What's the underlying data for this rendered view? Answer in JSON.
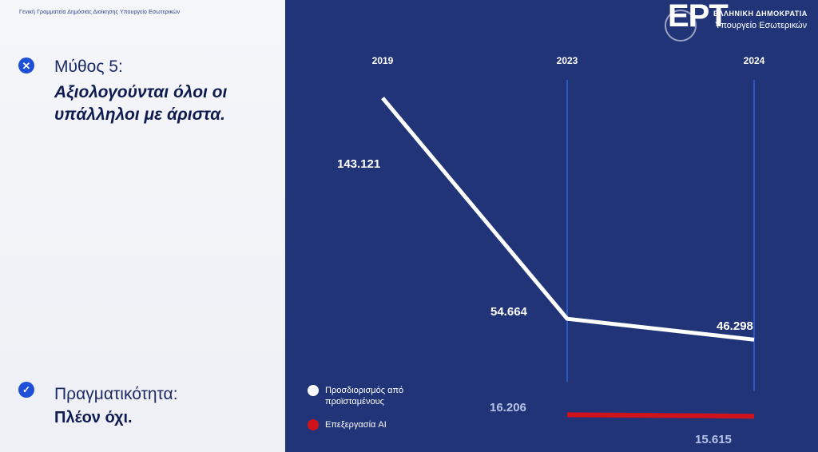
{
  "header": {
    "org_text": "Γενική Γραμματεία Δημόσιας Διοίκησης Υπουργείο Εσωτερικών"
  },
  "myth": {
    "label": "Μύθος 5:",
    "text": "Αξιολογούνται όλοι οι υπάλληλοι με άριστα.",
    "icon_name": "close-icon",
    "icon_glyph": "✕"
  },
  "reality": {
    "label": "Πραγματικότητα:",
    "text": "Πλέον όχι.",
    "icon_name": "check-icon",
    "icon_glyph": "✓"
  },
  "broadcaster": {
    "logo": "ΕΡΤ",
    "ministry_line1": "ΕΛΛΗΝΙΚΗ ΔΗΜΟΚΡΑΤΙΑ",
    "ministry_line2": "Υπουργείο Εσωτερικών"
  },
  "colors": {
    "chart_bg": "#223478",
    "series_supervisors": "#ffffff",
    "series_ai": "#d0121b",
    "guide_lines": "#2f63d6",
    "icon_blue": "#1e4fd8"
  },
  "chart_data": {
    "type": "line",
    "categories": [
      "2019",
      "2023",
      "2024"
    ],
    "series": [
      {
        "name": "Προσδιορισμός από προϊσταμένους",
        "values": [
          143121,
          54664,
          46298
        ],
        "labels": [
          "143.121",
          "54.664",
          "46.298"
        ],
        "color": "#ffffff"
      },
      {
        "name": "Επεξεργασία AI",
        "values": [
          null,
          16206,
          15615
        ],
        "labels": [
          "",
          "16.206",
          "15.615"
        ],
        "color": "#d0121b"
      }
    ],
    "legend_placement": "bottom-left",
    "grid": false,
    "ylim": [
      0,
      160000
    ]
  }
}
